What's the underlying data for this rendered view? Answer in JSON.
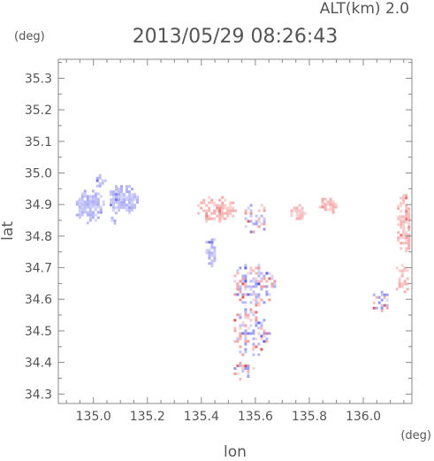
{
  "chart_data": {
    "type": "heatmap",
    "title": "2013/05/29 08:26:43",
    "subtitle": "ALT(km) 2.0",
    "xlabel": "lon",
    "ylabel": "lat",
    "x_unit": "(deg)",
    "y_unit": "(deg)",
    "xlim": [
      134.87,
      136.18
    ],
    "ylim": [
      34.27,
      35.36
    ],
    "x_ticks": [
      135.0,
      135.2,
      135.4,
      135.6,
      135.8,
      136.0
    ],
    "x_tick_labels": [
      "135.0",
      "135.2",
      "135.4",
      "135.6",
      "135.8",
      "136.0"
    ],
    "y_ticks": [
      34.3,
      34.4,
      34.5,
      34.6,
      34.7,
      34.8,
      34.9,
      35.0,
      35.1,
      35.2,
      35.3
    ],
    "y_tick_labels": [
      "34.3",
      "34.4",
      "34.5",
      "34.6",
      "34.7",
      "34.8",
      "34.9",
      "35.0",
      "35.1",
      "35.2",
      "35.3"
    ],
    "grid": false,
    "colors": {
      "positive": "#f08c8c",
      "negative": "#8c8cf0",
      "positive_strong": "#e04040",
      "negative_strong": "#4040d8",
      "axis": "#888888",
      "text": "#555555"
    },
    "clusters": [
      {
        "lon": 134.98,
        "lat": 34.9,
        "rlon": 0.055,
        "rlat": 0.055,
        "sign": "negative",
        "density": 0.9
      },
      {
        "lon": 135.11,
        "lat": 34.92,
        "rlon": 0.06,
        "rlat": 0.05,
        "sign": "negative",
        "density": 0.9
      },
      {
        "lon": 135.02,
        "lat": 34.98,
        "rlon": 0.02,
        "rlat": 0.025,
        "sign": "negative",
        "density": 0.8
      },
      {
        "lon": 135.07,
        "lat": 34.85,
        "rlon": 0.015,
        "rlat": 0.02,
        "sign": "negative",
        "density": 0.8
      },
      {
        "lon": 135.45,
        "lat": 34.89,
        "rlon": 0.075,
        "rlat": 0.045,
        "sign": "positive",
        "density": 0.7
      },
      {
        "lon": 135.6,
        "lat": 34.86,
        "rlon": 0.05,
        "rlat": 0.05,
        "sign": "mixed",
        "density": 0.5
      },
      {
        "lon": 135.43,
        "lat": 34.75,
        "rlon": 0.025,
        "rlat": 0.06,
        "sign": "negative",
        "density": 0.6
      },
      {
        "lon": 135.59,
        "lat": 34.65,
        "rlon": 0.08,
        "rlat": 0.07,
        "sign": "mixed",
        "density": 0.6
      },
      {
        "lon": 135.58,
        "lat": 34.5,
        "rlon": 0.07,
        "rlat": 0.08,
        "sign": "mixed",
        "density": 0.5
      },
      {
        "lon": 135.55,
        "lat": 34.38,
        "rlon": 0.04,
        "rlat": 0.03,
        "sign": "mixed",
        "density": 0.45
      },
      {
        "lon": 135.75,
        "lat": 34.88,
        "rlon": 0.03,
        "rlat": 0.03,
        "sign": "positive",
        "density": 0.8
      },
      {
        "lon": 135.86,
        "lat": 34.9,
        "rlon": 0.035,
        "rlat": 0.03,
        "sign": "positive",
        "density": 0.8
      },
      {
        "lon": 136.15,
        "lat": 34.85,
        "rlon": 0.035,
        "rlat": 0.1,
        "sign": "positive",
        "density": 0.8
      },
      {
        "lon": 136.06,
        "lat": 34.6,
        "rlon": 0.035,
        "rlat": 0.035,
        "sign": "mixed",
        "density": 0.6
      },
      {
        "lon": 136.14,
        "lat": 34.67,
        "rlon": 0.03,
        "rlat": 0.05,
        "sign": "positive",
        "density": 0.55
      }
    ]
  }
}
